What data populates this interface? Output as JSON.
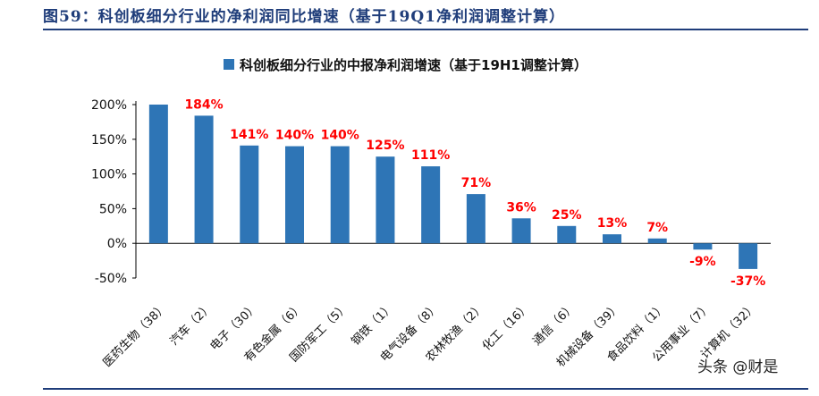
{
  "figure_title": "图59：科创板细分行业的净利润同比增速（基于19Q1净利润调整计算）",
  "watermark": "头条 @财是",
  "colors": {
    "bar": "#2e75b6",
    "data_label": "#ff0000",
    "title": "#1f3d7a"
  },
  "chart_data": {
    "type": "bar",
    "title": "",
    "xlabel": "",
    "ylabel": "",
    "legend": {
      "label": "科创板细分行业的中报净利润增速（基于19H1调整计算）",
      "position": "top"
    },
    "ylim": [
      -50,
      200
    ],
    "yticks": [
      -50,
      0,
      50,
      100,
      150,
      200
    ],
    "ytick_labels": [
      "-50%",
      "0%",
      "50%",
      "100%",
      "150%",
      "200%"
    ],
    "grid": false,
    "categories": [
      "医药生物（38）",
      "汽车（2）",
      "电子（30）",
      "有色金属（6）",
      "国防军工（5）",
      "钢铁（1）",
      "电气设备（8）",
      "农林牧渔（2）",
      "化工（16）",
      "通信（6）",
      "机械设备（39）",
      "食品饮料（1）",
      "公用事业（7）",
      "计算机（32）"
    ],
    "series": [
      {
        "name": "科创板细分行业的中报净利润增速（基于19H1调整计算）",
        "values": [
          200,
          184,
          141,
          140,
          140,
          125,
          111,
          71,
          36,
          25,
          13,
          7,
          -9,
          -37
        ],
        "labels": [
          "",
          "184%",
          "141%",
          "140%",
          "140%",
          "125%",
          "111%",
          "71%",
          "36%",
          "25%",
          "13%",
          "7%",
          "-9%",
          "-37%"
        ]
      }
    ]
  }
}
